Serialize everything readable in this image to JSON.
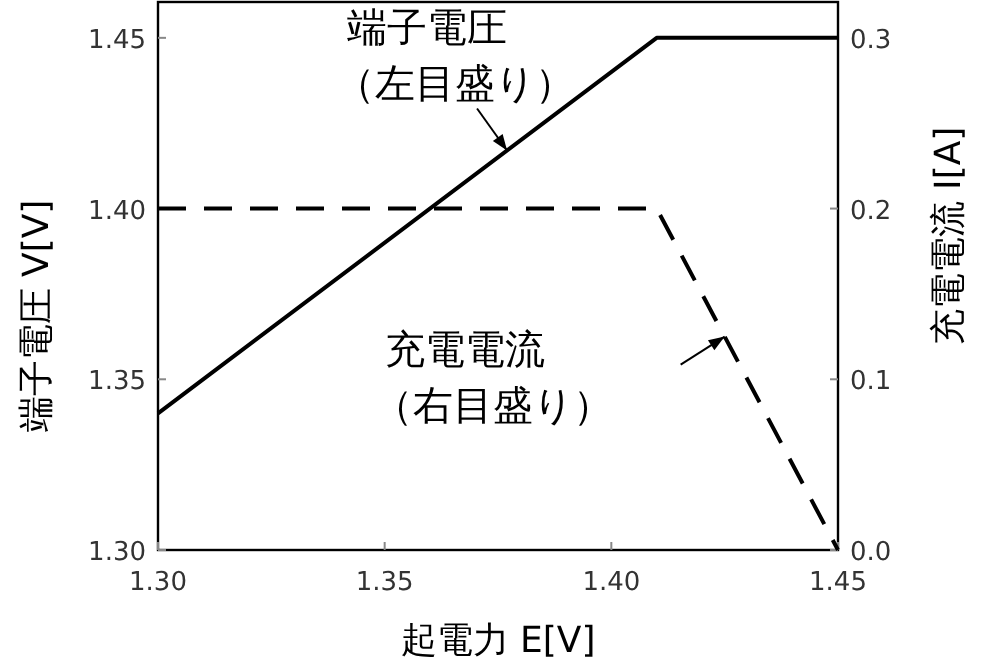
{
  "chart_data": {
    "type": "line",
    "xlabel": "起電力 E[V]",
    "ylabel": "端子電圧 V[V]",
    "y2label": "充電電流 I[A]",
    "xlim": [
      1.3,
      1.45
    ],
    "xticks": [
      {
        "value": 1.3,
        "label": "1.30"
      },
      1.35,
      {
        "value": 1.4,
        "label": "1.40"
      },
      1.45
    ],
    "ylim": [
      1.3,
      1.4605
    ],
    "yticks": [
      {
        "value": 1.3,
        "label": "1.30"
      },
      1.35,
      {
        "value": 1.4,
        "label": "1.40"
      },
      1.45
    ],
    "y2lim": [
      0,
      0.321
    ],
    "y2ticks": [
      {
        "value": 0,
        "label": "0.0"
      },
      0.1,
      0.2,
      0.3
    ],
    "grid": false,
    "marker": "none",
    "series": [
      {
        "color": "#000000",
        "line_style": "solid",
        "x": [
          1.3,
          1.41,
          1.45
        ],
        "values": [
          1.34,
          1.45,
          1.45
        ]
      },
      {
        "color": "#000000",
        "line_style": "dashed",
        "axis": "y2",
        "x": [
          1.3,
          1.41,
          1.45
        ],
        "values": [
          0.2,
          0.2,
          0.0
        ]
      }
    ],
    "annotations": [
      {
        "text": "端子電圧（左目盛り）",
        "x": 1.377,
        "y": 1.417
      },
      {
        "text": "充電電流（右目盛り）",
        "x": 1.425,
        "y": 1.3625
      }
    ]
  }
}
